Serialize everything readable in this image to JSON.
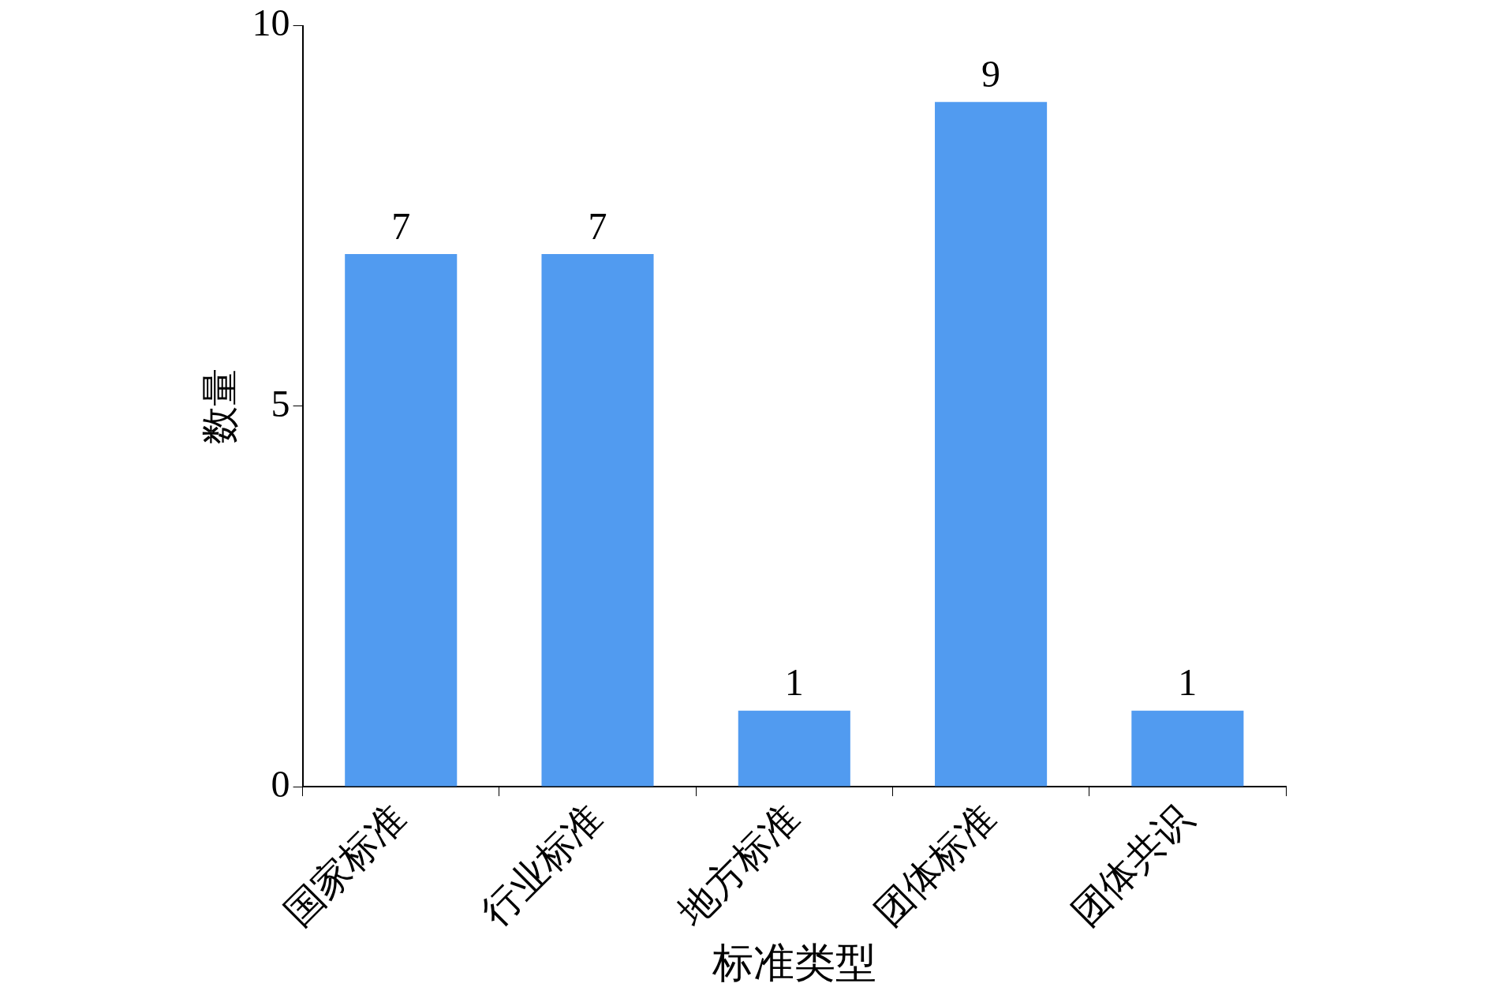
{
  "chart_data": {
    "type": "bar",
    "xlabel": "标准类型",
    "ylabel": "数量",
    "categories": [
      "国家标准",
      "行业标准",
      "地方标准",
      "团体标准",
      "团体共识"
    ],
    "values": [
      7,
      7,
      1,
      9,
      1
    ],
    "color": "#519bf0",
    "ylim": [
      0,
      10
    ],
    "yticks": [
      0,
      5,
      10
    ],
    "data_labels": true
  }
}
